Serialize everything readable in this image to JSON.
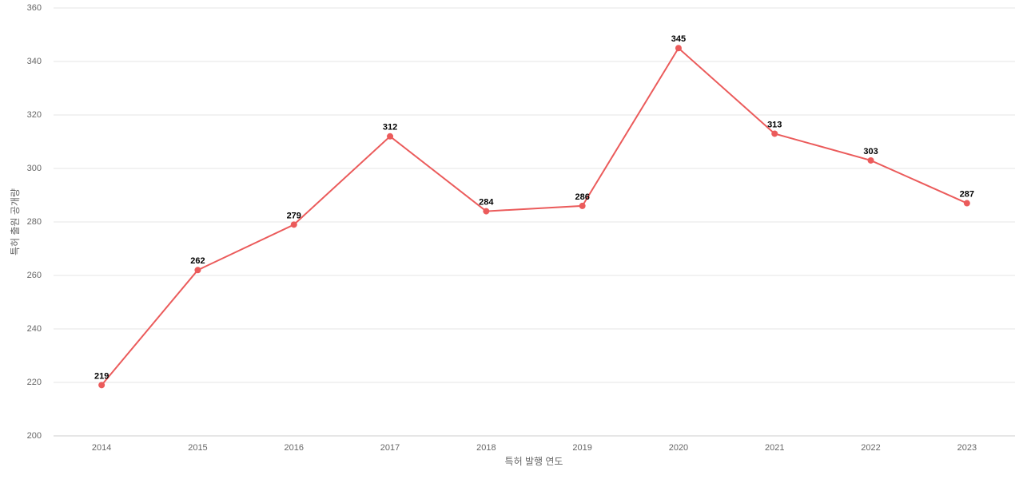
{
  "chart_data": {
    "type": "line",
    "x_label": "특허 발행 연도",
    "y_label": "특허 출원 공개량",
    "categories": [
      "2014",
      "2015",
      "2016",
      "2017",
      "2018",
      "2019",
      "2020",
      "2021",
      "2022",
      "2023"
    ],
    "series": [
      {
        "name": "특허 출원 공개량",
        "color": "#eb5b5b",
        "values": [
          219,
          262,
          279,
          312,
          284,
          286,
          345,
          313,
          303,
          287
        ]
      }
    ],
    "ylim": [
      200,
      360
    ],
    "yticks": [
      200,
      220,
      240,
      260,
      280,
      300,
      320,
      340,
      360
    ],
    "grid": true
  }
}
